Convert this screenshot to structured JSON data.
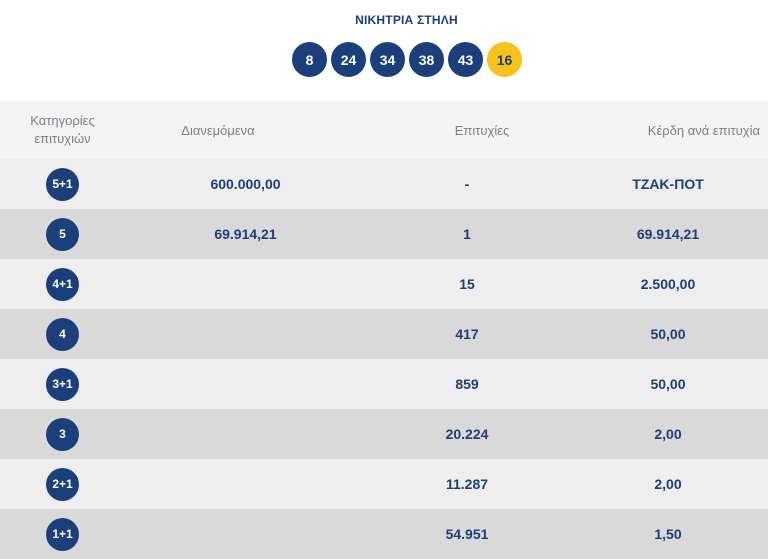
{
  "winning_line": {
    "title": "ΝΙΚΗΤΡΙΑ ΣΤΗΛΗ",
    "numbers": [
      "8",
      "24",
      "34",
      "38",
      "43"
    ],
    "bonus": "16"
  },
  "table": {
    "headers": {
      "category_line1": "Κατηγορίες",
      "category_line2": "επιτυχιών",
      "distributed": "Διανεμόμενα",
      "winners": "Επιτυχίες",
      "prize_per_winner": "Κέρδη ανά επιτυχία"
    },
    "rows": [
      {
        "category": "5+1",
        "distributed": "600.000,00",
        "winners": "-",
        "prize": "ΤΖΑΚ-ΠΟΤ"
      },
      {
        "category": "5",
        "distributed": "69.914,21",
        "winners": "1",
        "prize": "69.914,21"
      },
      {
        "category": "4+1",
        "distributed": "",
        "winners": "15",
        "prize": "2.500,00"
      },
      {
        "category": "4",
        "distributed": "",
        "winners": "417",
        "prize": "50,00"
      },
      {
        "category": "3+1",
        "distributed": "",
        "winners": "859",
        "prize": "50,00"
      },
      {
        "category": "3",
        "distributed": "",
        "winners": "20.224",
        "prize": "2,00"
      },
      {
        "category": "2+1",
        "distributed": "",
        "winners": "11.287",
        "prize": "2,00"
      },
      {
        "category": "1+1",
        "distributed": "",
        "winners": "54.951",
        "prize": "1,50"
      }
    ]
  },
  "colors": {
    "primary_blue": "#1a3f7a",
    "bonus_yellow": "#f6c21b",
    "header_gray": "#f4f4f4",
    "row_light": "#eeeeee",
    "row_dark": "#d9d9d9"
  }
}
